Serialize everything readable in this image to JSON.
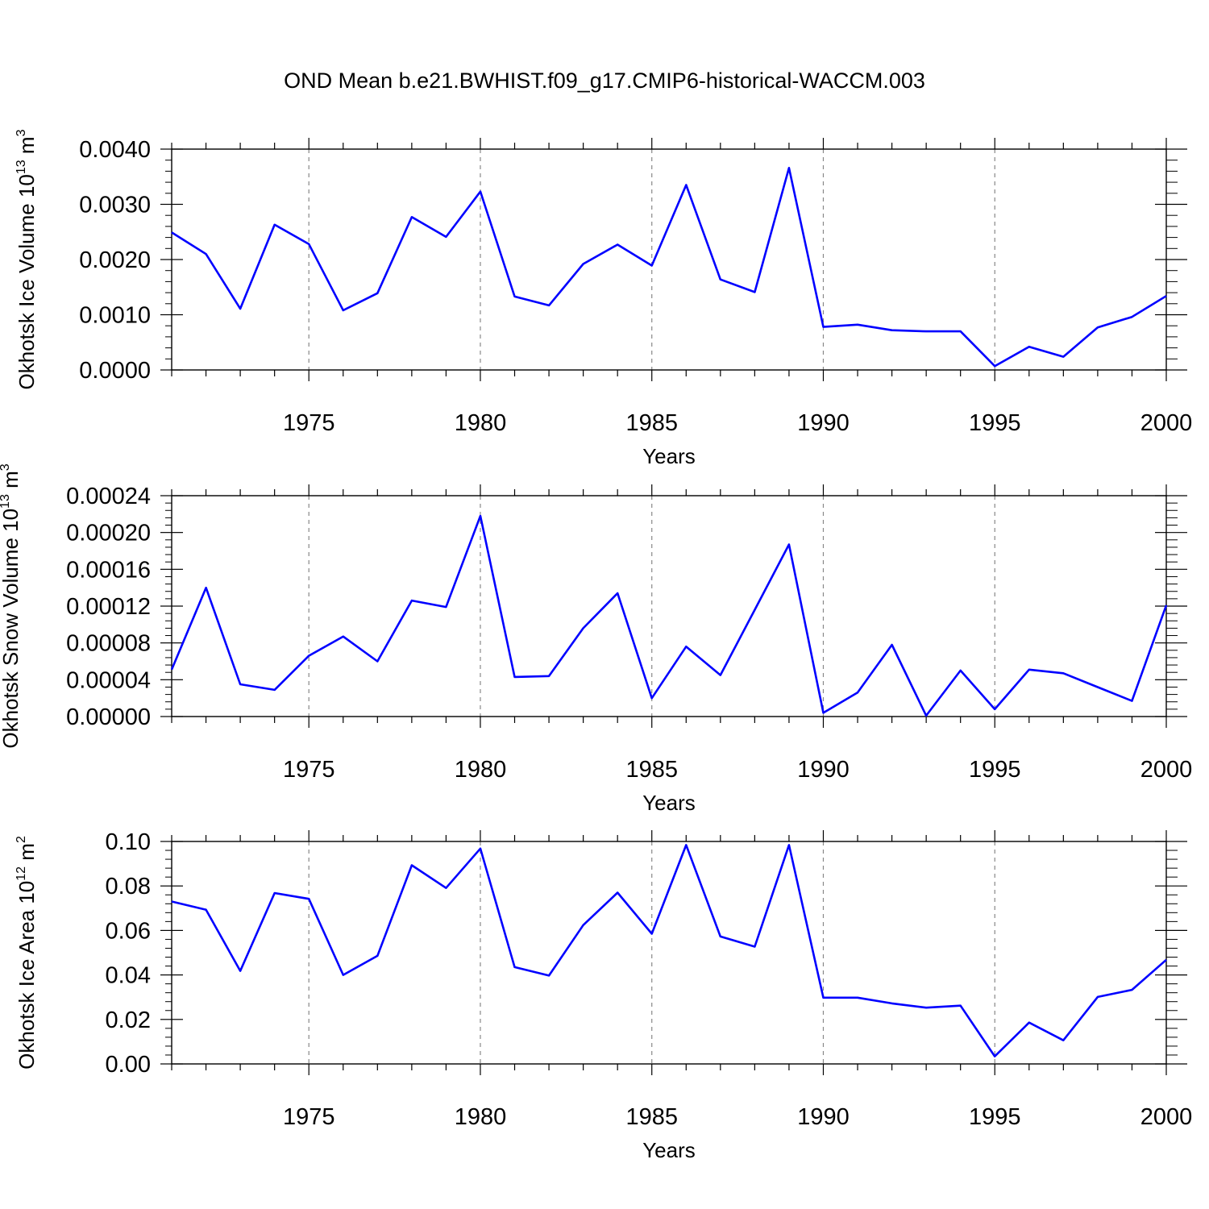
{
  "figure_title": "OND Mean b.e21.BWHIST.f09_g17.CMIP6-historical-WACCM.003",
  "line_color": "#0000ff",
  "chart_data": [
    {
      "type": "line",
      "title": "OND Mean b.e21.BWHIST.f09_g17.CMIP6-historical-WACCM.003",
      "xlabel": "Years",
      "ylabel": "Okhotsk Ice Volume 10",
      "ylabel_exp": "13",
      "ylabel_unit": " m",
      "ylabel_unit_exp": "3",
      "xlim": [
        1971,
        2000
      ],
      "ylim": [
        0,
        0.004
      ],
      "yticks": [
        0,
        0.001,
        0.002,
        0.003,
        0.004
      ],
      "ytick_labels": [
        "0.0000",
        "0.0010",
        "0.0020",
        "0.0030",
        "0.0040"
      ],
      "xticks": [
        1975,
        1980,
        1985,
        1990,
        1995,
        2000
      ],
      "xtick_labels": [
        "1975",
        "1980",
        "1985",
        "1990",
        "1995",
        "2000"
      ],
      "x": [
        1971,
        1972,
        1973,
        1974,
        1975,
        1976,
        1977,
        1978,
        1979,
        1980,
        1981,
        1982,
        1983,
        1984,
        1985,
        1986,
        1987,
        1988,
        1989,
        1990,
        1991,
        1992,
        1993,
        1994,
        1995,
        1996,
        1997,
        1998,
        1999,
        2000
      ],
      "values": [
        0.00249,
        0.0021,
        0.00111,
        0.00263,
        0.00228,
        0.00108,
        0.00139,
        0.00277,
        0.00241,
        0.00323,
        0.00133,
        0.00117,
        0.00192,
        0.00227,
        0.00189,
        0.00335,
        0.00164,
        0.00141,
        0.00366,
        0.00078,
        0.00082,
        0.00072,
        0.0007,
        0.0007,
        7e-05,
        0.00042,
        0.00024,
        0.00077,
        0.00096,
        0.00134
      ]
    },
    {
      "type": "line",
      "xlabel": "Years",
      "ylabel": "Okhotsk Snow Volume 10",
      "ylabel_exp": "13",
      "ylabel_unit": " m",
      "ylabel_unit_exp": "3",
      "xlim": [
        1971,
        2000
      ],
      "ylim": [
        0,
        0.00024
      ],
      "yticks": [
        0,
        4e-05,
        8e-05,
        0.00012,
        0.00016,
        0.0002,
        0.00024
      ],
      "ytick_labels": [
        "0.00000",
        "0.00004",
        "0.00008",
        "0.00012",
        "0.00016",
        "0.00020",
        "0.00024"
      ],
      "xticks": [
        1975,
        1980,
        1985,
        1990,
        1995,
        2000
      ],
      "xtick_labels": [
        "1975",
        "1980",
        "1985",
        "1990",
        "1995",
        "2000"
      ],
      "x": [
        1971,
        1972,
        1973,
        1974,
        1975,
        1976,
        1977,
        1978,
        1979,
        1980,
        1981,
        1982,
        1983,
        1984,
        1985,
        1986,
        1987,
        1988,
        1989,
        1990,
        1991,
        1992,
        1993,
        1994,
        1995,
        1996,
        1997,
        1998,
        1999,
        2000
      ],
      "values": [
        5.1e-05,
        0.00014,
        3.5e-05,
        2.9e-05,
        6.6e-05,
        8.7e-05,
        6e-05,
        0.000126,
        0.000119,
        0.000218,
        4.3e-05,
        4.4e-05,
        9.6e-05,
        0.000134,
        2e-05,
        7.6e-05,
        4.5e-05,
        0.000116,
        0.000187,
        4e-06,
        2.6e-05,
        7.8e-05,
        1e-06,
        5e-05,
        8e-06,
        5.1e-05,
        4.7e-05,
        3.2e-05,
        1.7e-05,
        0.000121
      ]
    },
    {
      "type": "line",
      "xlabel": "Years",
      "ylabel": "Okhotsk Ice Area 10",
      "ylabel_exp": "12",
      "ylabel_unit": " m",
      "ylabel_unit_exp": "2",
      "xlim": [
        1971,
        2000
      ],
      "ylim": [
        0,
        0.1
      ],
      "yticks": [
        0,
        0.02,
        0.04,
        0.06,
        0.08,
        0.1
      ],
      "ytick_labels": [
        "0.00",
        "0.02",
        "0.04",
        "0.06",
        "0.08",
        "0.10"
      ],
      "xticks": [
        1975,
        1980,
        1985,
        1990,
        1995,
        2000
      ],
      "xtick_labels": [
        "1975",
        "1980",
        "1985",
        "1990",
        "1995",
        "2000"
      ],
      "x": [
        1971,
        1972,
        1973,
        1974,
        1975,
        1976,
        1977,
        1978,
        1979,
        1980,
        1981,
        1982,
        1983,
        1984,
        1985,
        1986,
        1987,
        1988,
        1989,
        1990,
        1991,
        1992,
        1993,
        1994,
        1995,
        1996,
        1997,
        1998,
        1999,
        2000
      ],
      "values": [
        0.073,
        0.0693,
        0.0418,
        0.0768,
        0.0742,
        0.04,
        0.0486,
        0.0893,
        0.0791,
        0.0968,
        0.0435,
        0.0397,
        0.0624,
        0.077,
        0.0585,
        0.0984,
        0.0573,
        0.0527,
        0.0984,
        0.0298,
        0.0298,
        0.0272,
        0.0253,
        0.0262,
        0.0034,
        0.0186,
        0.0106,
        0.0301,
        0.0333,
        0.0468
      ]
    }
  ]
}
